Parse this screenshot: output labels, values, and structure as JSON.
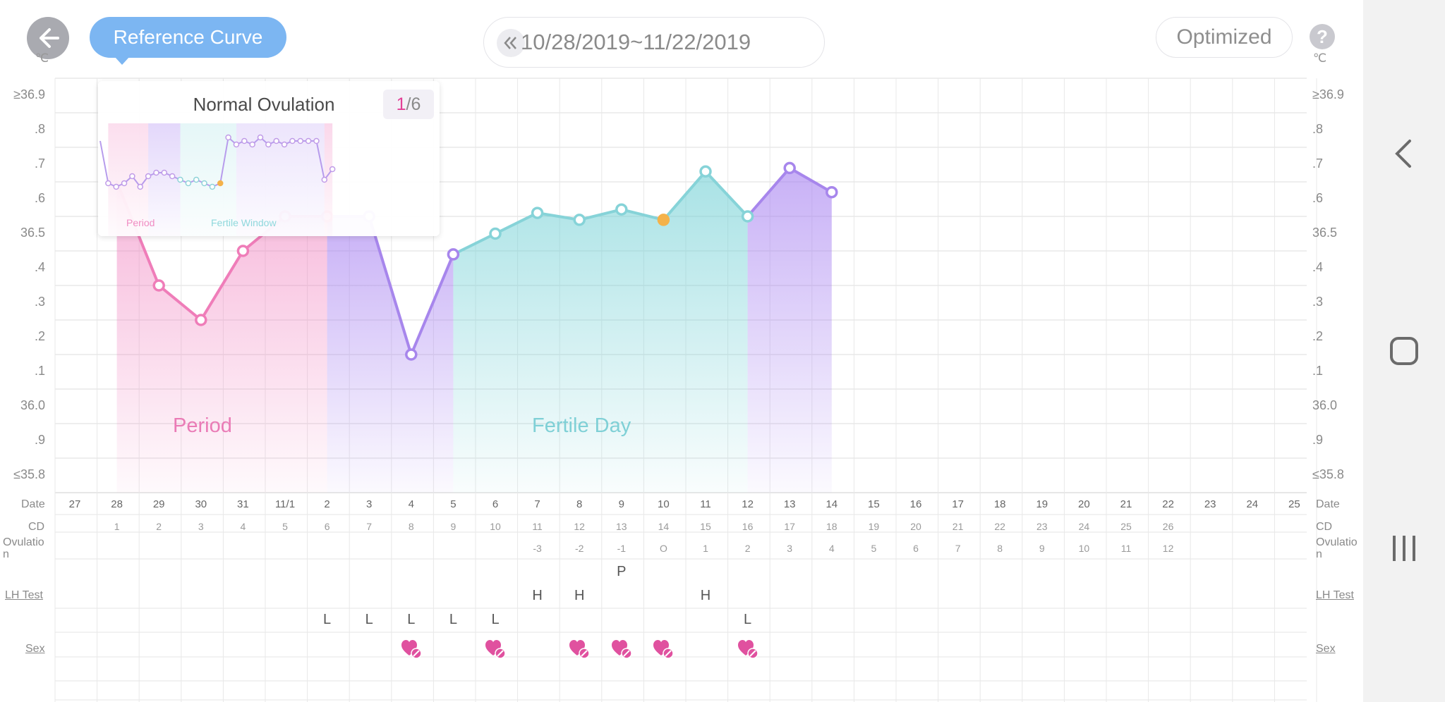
{
  "header": {
    "reference_curve_label": "Reference Curve",
    "date_range": "10/28/2019~11/22/2019",
    "optimized_label": "Optimized",
    "help_label": "?"
  },
  "axis": {
    "unit": "℃",
    "y_labels": [
      "≥36.9",
      ".8",
      ".7",
      ".6",
      "36.5",
      ".4",
      ".3",
      ".2",
      ".1",
      "36.0",
      ".9",
      "≤35.8"
    ]
  },
  "rows": {
    "date_label": "Date",
    "cd_label": "CD",
    "ovulation_label": "Ovulatio\nn",
    "lh_label": "LH Test",
    "sex_label": "Sex"
  },
  "dates": [
    "27",
    "28",
    "29",
    "30",
    "31",
    "11/1",
    "2",
    "3",
    "4",
    "5",
    "6",
    "7",
    "8",
    "9",
    "10",
    "11",
    "12",
    "13",
    "14",
    "15",
    "16",
    "17",
    "18",
    "19",
    "20",
    "21",
    "22",
    "23",
    "24",
    "25"
  ],
  "cd": [
    "",
    "1",
    "2",
    "3",
    "4",
    "5",
    "6",
    "7",
    "8",
    "9",
    "10",
    "11",
    "12",
    "13",
    "14",
    "15",
    "16",
    "17",
    "18",
    "19",
    "20",
    "21",
    "22",
    "23",
    "24",
    "25",
    "26",
    "",
    "",
    ""
  ],
  "ovulation": [
    "",
    "",
    "",
    "",
    "",
    "",
    "",
    "",
    "",
    "",
    "",
    "-3",
    "-2",
    "-1",
    "O",
    "1",
    "2",
    "3",
    "4",
    "5",
    "6",
    "7",
    "8",
    "9",
    "10",
    "11",
    "12",
    "",
    "",
    ""
  ],
  "lh_marks": [
    {
      "col": 13,
      "level": "top",
      "text": "P"
    },
    {
      "col": 11,
      "level": "mid",
      "text": "H"
    },
    {
      "col": 12,
      "level": "mid",
      "text": "H"
    },
    {
      "col": 15,
      "level": "mid",
      "text": "H"
    },
    {
      "col": 6,
      "level": "low",
      "text": "L"
    },
    {
      "col": 7,
      "level": "low",
      "text": "L"
    },
    {
      "col": 8,
      "level": "low",
      "text": "L"
    },
    {
      "col": 9,
      "level": "low",
      "text": "L"
    },
    {
      "col": 10,
      "level": "low",
      "text": "L"
    },
    {
      "col": 16,
      "level": "low",
      "text": "L"
    }
  ],
  "sex_cols": [
    8,
    10,
    12,
    13,
    14,
    16
  ],
  "zone_labels": {
    "period": "Period",
    "fertile": "Fertile Day"
  },
  "popup": {
    "title": "Normal Ovulation",
    "page_current": "1",
    "page_total": "/6",
    "period_label": "Period",
    "fertile_label": "Fertile Window",
    "mini_temps": [
      36.74,
      36.62,
      36.61,
      36.62,
      36.64,
      36.61,
      36.64,
      36.65,
      36.65,
      36.64,
      36.63,
      36.62,
      36.63,
      36.62,
      36.61,
      36.62,
      36.75,
      36.73,
      36.74,
      36.73,
      36.75,
      36.73,
      36.74,
      36.73,
      36.74,
      36.74,
      36.74,
      36.74,
      36.63,
      36.66
    ]
  },
  "chart_data": {
    "type": "area",
    "title": "",
    "xlabel": "Date",
    "ylabel": "℃",
    "ylim": [
      35.8,
      36.9
    ],
    "x": [
      "28",
      "29",
      "30",
      "31",
      "11/1",
      "2",
      "3",
      "4",
      "5",
      "6",
      "7",
      "8",
      "9",
      "10",
      "11",
      "12",
      "13",
      "14"
    ],
    "series": [
      {
        "name": "",
        "values": [
          36.6,
          36.3,
          36.2,
          36.4,
          36.5,
          36.5,
          36.5,
          36.1,
          36.39,
          36.45,
          36.51,
          36.49,
          36.52,
          36.49,
          36.63,
          36.5,
          36.64,
          36.57
        ]
      }
    ],
    "phases": [
      {
        "name": "Period",
        "from": "28",
        "to": "2",
        "color": "#f07cbc"
      },
      {
        "name": "",
        "from": "2",
        "to": "5",
        "color": "#b28ef0"
      },
      {
        "name": "Fertile Day",
        "from": "5",
        "to": "12",
        "color": "#7dd3d8"
      },
      {
        "name": "",
        "from": "12",
        "to": "14",
        "color": "#b28ef0"
      }
    ],
    "ovulation_day": "10",
    "ovulation_color": "#f4b24a",
    "grid": true
  }
}
